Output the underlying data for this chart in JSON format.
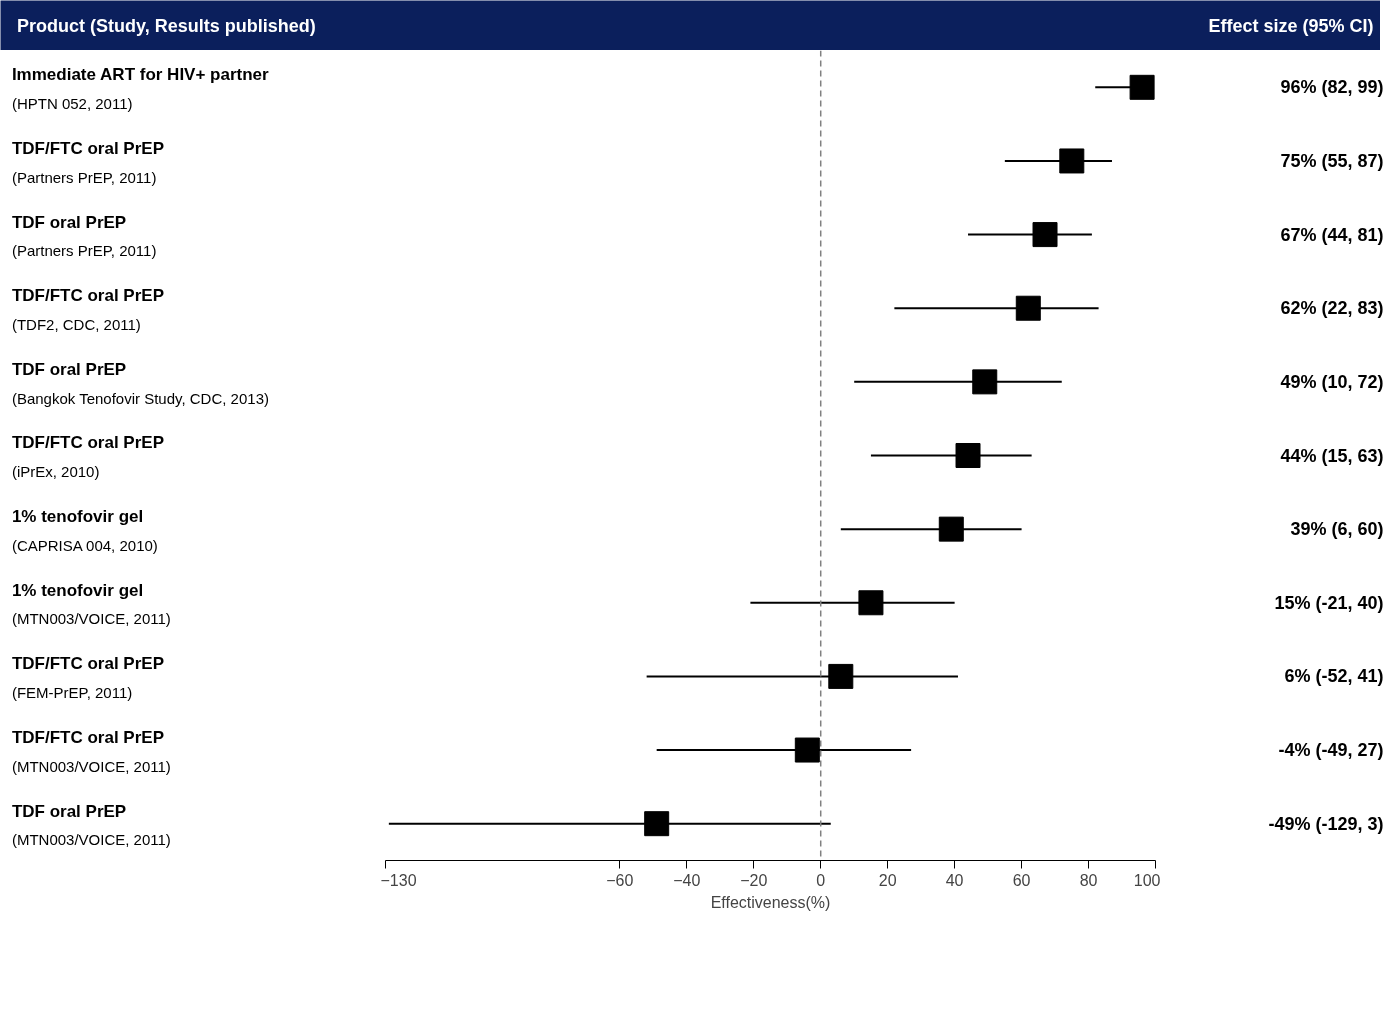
{
  "chart_data": {
    "type": "scatter",
    "orientation": "horizontal",
    "ylabel": "Product (Study, Results published)",
    "y2label": "Effect size (95% CI)",
    "xlabel": "Effectiveness(%)",
    "categories": [
      "Immediate ART for HIV+ partner\n(HPTN 052, 2011)",
      "TDF/FTC oral PrEP\n(Partners PrEP, 2011)",
      "TDF oral PrEP\n(Partners PrEP, 2011)",
      "TDF/FTC oral PrEP\n(TDF2, CDC, 2011)",
      "TDF oral PrEP\n(Bangkok Tenofovir Study, CDC, 2013)",
      "TDF/FTC oral PrEP\n(iPrEx, 2010)",
      "1% tenofovir gel\n(CAPRISA 004, 2010)",
      "1% tenofovir gel\n(MTN003/VOICE, 2011)",
      "TDF/FTC oral PrEP\n(FEM-PrEP, 2011)",
      "TDF/FTC oral PrEP\n(MTN003/VOICE, 2011)",
      "TDF oral PrEP\n(MTN003/VOICE, 2011)"
    ],
    "values": [
      96,
      75,
      67,
      62,
      49,
      44,
      39,
      15,
      6,
      -4,
      -49
    ],
    "errors": [
      [
        82,
        99
      ],
      [
        55,
        87
      ],
      [
        44,
        81
      ],
      [
        22,
        83
      ],
      [
        10,
        72
      ],
      [
        15,
        63
      ],
      [
        6,
        60
      ],
      [
        -21,
        40
      ],
      [
        -52,
        41
      ],
      [
        -49,
        27
      ],
      [
        -129,
        3
      ]
    ],
    "value_labels": [
      "96% (82, 99)",
      "75% (55, 87)",
      "67% (44, 81)",
      "62% (22, 83)",
      "49% (10, 72)",
      "44% (15, 63)",
      "39% (6, 60)",
      "15% (-21, 40)",
      "6% (-52, 41)",
      "-4% (-49, 27)",
      "-49% (-129, 3)"
    ],
    "color": "#000000",
    "marker": "square",
    "xlim": [
      -130,
      100
    ],
    "xticks": [
      -130,
      -60,
      -40,
      -20,
      0,
      20,
      40,
      60,
      80,
      100
    ],
    "ref_lines": [
      {
        "axis": "x",
        "value": 0,
        "color": "#808080",
        "line_style": "dashed"
      }
    ]
  }
}
